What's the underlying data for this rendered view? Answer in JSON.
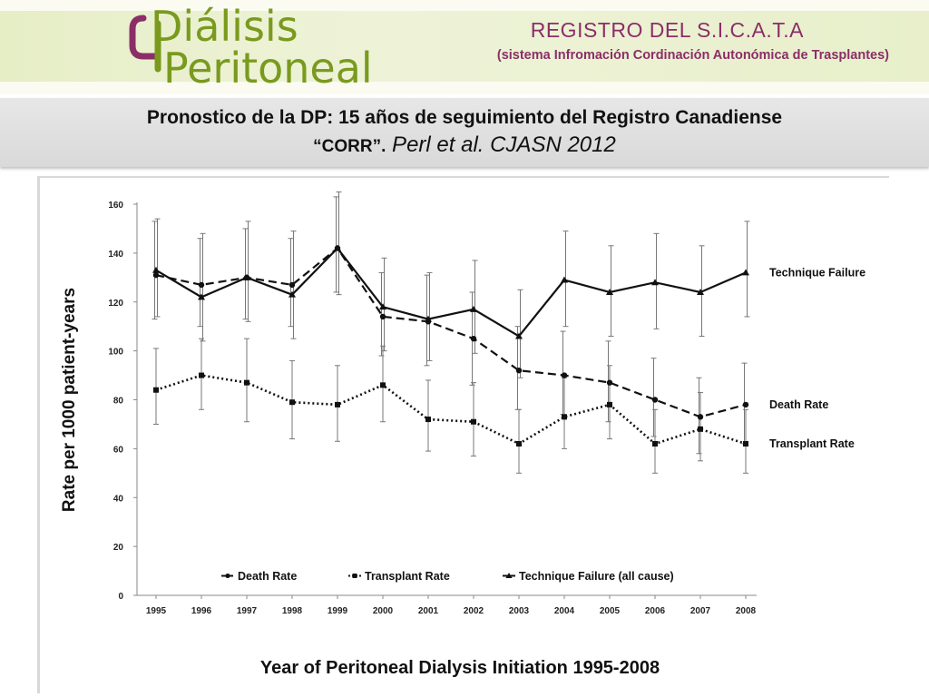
{
  "header": {
    "logo_line1": "Diálisis",
    "logo_line2": "Peritoneal",
    "registry_title": "REGISTRO DEL S.I.C.A.T.A",
    "registry_subtitle": "(sistema Infromación Cordinación Autonómica de Trasplantes)"
  },
  "heading": {
    "line1": "Pronostico de la DP: 15 años de seguimiento del Registro Canadiense",
    "corr": "“CORR”.",
    "citation": " Perl et al. CJASN 2012"
  },
  "colors": {
    "logo_green": "#7a9a1e",
    "logo_purple": "#8b2e68",
    "title_purple": "#8b2e68"
  },
  "chart_data": {
    "type": "line",
    "categories": [
      "1995",
      "1996",
      "1997",
      "1998",
      "1999",
      "2000",
      "2001",
      "2002",
      "2003",
      "2004",
      "2005",
      "2006",
      "2007",
      "2008"
    ],
    "ylabel": "Rate per 1000 patient-years",
    "xlabel": "Year of Peritoneal Dialysis Initiation 1995-2008",
    "ylim": [
      0,
      160
    ],
    "yticks": [
      0,
      20,
      40,
      60,
      80,
      100,
      120,
      140,
      160
    ],
    "grid": false,
    "legend_placement": "bottom",
    "series": [
      {
        "name": "Death Rate",
        "end_label": "Death Rate",
        "style": "dashed",
        "marker": "circle",
        "values": [
          131,
          127,
          130,
          127,
          142,
          114,
          112,
          105,
          92,
          90,
          87,
          80,
          73,
          78
        ],
        "err_low": [
          113,
          110,
          113,
          110,
          124,
          98,
          94,
          86,
          76,
          74,
          71,
          65,
          58,
          62
        ],
        "err_high": [
          153,
          146,
          150,
          146,
          163,
          132,
          131,
          124,
          110,
          108,
          104,
          97,
          89,
          95
        ]
      },
      {
        "name": "Transplant Rate",
        "end_label": "Transplant Rate",
        "style": "dotted",
        "marker": "square",
        "values": [
          84,
          90,
          87,
          79,
          78,
          86,
          72,
          71,
          62,
          73,
          78,
          62,
          68,
          62
        ],
        "err_low": [
          70,
          76,
          71,
          64,
          63,
          71,
          59,
          57,
          50,
          60,
          64,
          50,
          55,
          50
        ],
        "err_high": [
          101,
          105,
          105,
          96,
          94,
          102,
          88,
          87,
          76,
          89,
          94,
          76,
          83,
          76
        ]
      },
      {
        "name": "Technique Failure (all cause)",
        "end_label": "Technique Failure",
        "style": "solid",
        "marker": "triangle",
        "values": [
          133,
          122,
          130,
          123,
          142,
          118,
          113,
          117,
          106,
          129,
          124,
          128,
          124,
          132
        ],
        "err_low": [
          114,
          104,
          112,
          105,
          123,
          100,
          96,
          99,
          89,
          110,
          106,
          109,
          106,
          114
        ],
        "err_high": [
          154,
          148,
          153,
          149,
          165,
          138,
          132,
          137,
          125,
          149,
          143,
          148,
          143,
          153
        ]
      }
    ]
  }
}
